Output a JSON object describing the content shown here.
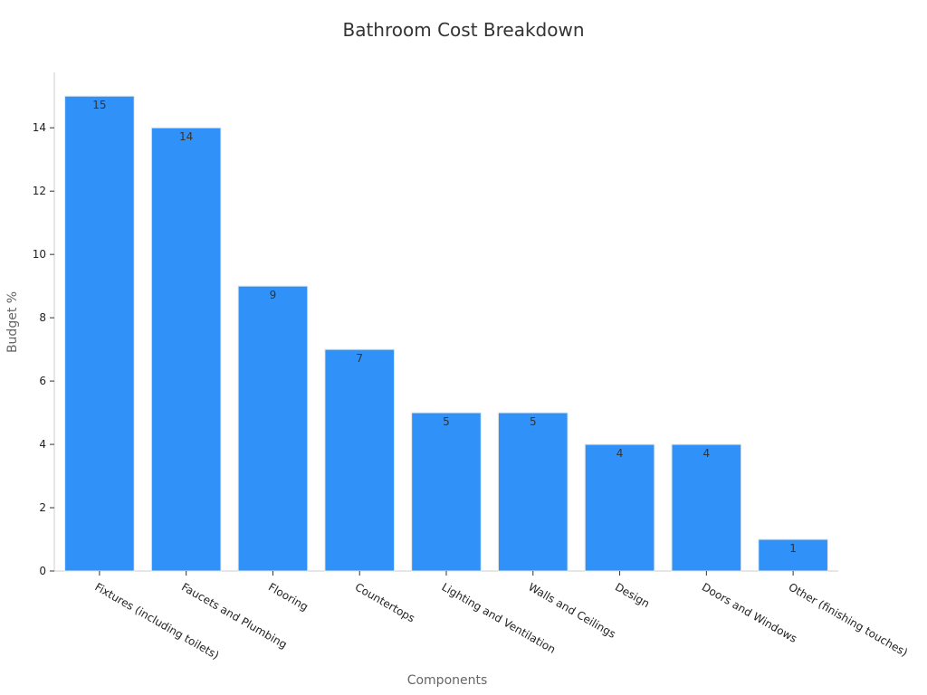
{
  "chart_data": {
    "type": "bar",
    "title": "Bathroom Cost Breakdown",
    "xlabel": "Components",
    "ylabel": "Budget %",
    "categories": [
      "Fixtures (including toilets)",
      "Faucets and Plumbing",
      "Flooring",
      "Countertops",
      "Lighting and Ventilation",
      "Walls and Ceilings",
      "Design",
      "Doors and Windows",
      "Other (finishing touches)"
    ],
    "values": [
      15,
      14,
      9,
      7,
      5,
      5,
      4,
      4,
      1
    ],
    "ylim": [
      0,
      15.75
    ],
    "yticks": [
      0,
      2,
      4,
      6,
      8,
      10,
      12,
      14
    ],
    "grid": false,
    "legend": "none",
    "bar_color": "#3092f8"
  }
}
